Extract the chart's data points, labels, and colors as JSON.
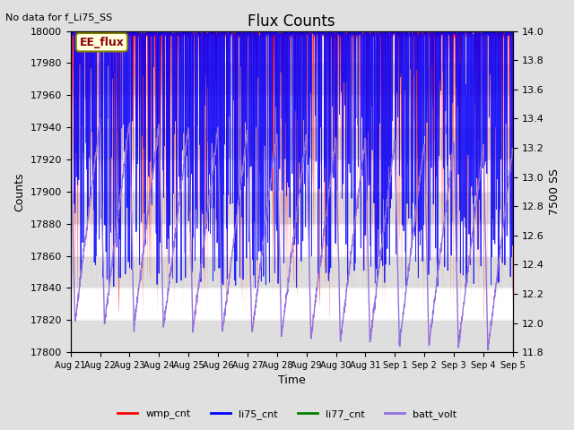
{
  "title": "Flux Counts",
  "top_left_text": "No data for f_Li75_SS",
  "xlabel": "Time",
  "ylabel_left": "Counts",
  "ylabel_right": "7500 SS",
  "annotation_box": "EE_flux",
  "ylim_left": [
    17800,
    18000
  ],
  "ylim_right": [
    11.8,
    14.0
  ],
  "yticks_left": [
    17800,
    17820,
    17840,
    17860,
    17880,
    17900,
    17920,
    17940,
    17960,
    17980,
    18000
  ],
  "yticks_right": [
    11.8,
    12.0,
    12.2,
    12.4,
    12.6,
    12.8,
    13.0,
    13.2,
    13.4,
    13.6,
    13.8,
    14.0
  ],
  "xtick_labels": [
    "Aug 21",
    "Aug 22",
    "Aug 23",
    "Aug 24",
    "Aug 25",
    "Aug 26",
    "Aug 27",
    "Aug 28",
    "Aug 29",
    "Aug 30",
    "Aug 31",
    "Sep 1",
    "Sep 2",
    "Sep 3",
    "Sep 4",
    "Sep 5"
  ],
  "legend_entries": [
    "wmp_cnt",
    "li75_cnt",
    "li77_cnt",
    "batt_volt"
  ],
  "legend_colors": [
    "red",
    "blue",
    "green",
    "mediumpurple"
  ],
  "wmp_color": "red",
  "li75_color": "blue",
  "li77_color": "limegreen",
  "batt_color": "mediumpurple",
  "background_color": "#e0e0e0",
  "plot_bg_color": "white",
  "gray_band_color": "#d0d0d0",
  "num_days": 15,
  "seed": 42
}
